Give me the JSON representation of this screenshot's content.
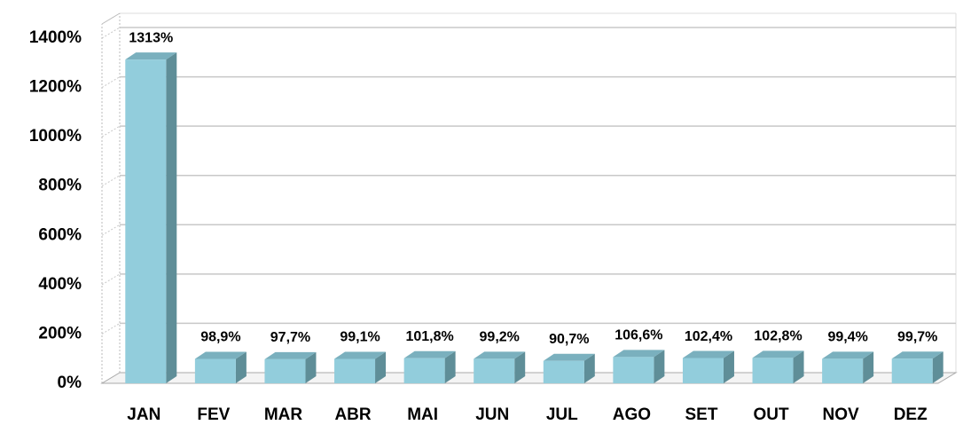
{
  "chart_data": {
    "type": "bar",
    "categories": [
      "JAN",
      "FEV",
      "MAR",
      "ABR",
      "MAI",
      "JUN",
      "JUL",
      "AGO",
      "SET",
      "OUT",
      "NOV",
      "DEZ"
    ],
    "values": [
      1313,
      98.9,
      97.7,
      99.1,
      101.8,
      99.2,
      90.7,
      106.6,
      102.4,
      102.8,
      99.4,
      99.7
    ],
    "value_labels": [
      "1313%",
      "98,9%",
      "97,7%",
      "99,1%",
      "101,8%",
      "99,2%",
      "90,7%",
      "106,6%",
      "102,4%",
      "102,8%",
      "99,4%",
      "99,7%"
    ],
    "color": "#92cddc",
    "ylim": [
      0,
      1400
    ],
    "yticks": [
      {
        "value": 0,
        "label": "0%"
      },
      {
        "value": 200,
        "label": "200%"
      },
      {
        "value": 400,
        "label": "400%"
      },
      {
        "value": 600,
        "label": "600%"
      },
      {
        "value": 800,
        "label": "800%"
      },
      {
        "value": 1000,
        "label": "1000%"
      },
      {
        "value": 1200,
        "label": "1200%"
      },
      {
        "value": 1400,
        "label": "1400%"
      }
    ],
    "grid": true
  }
}
